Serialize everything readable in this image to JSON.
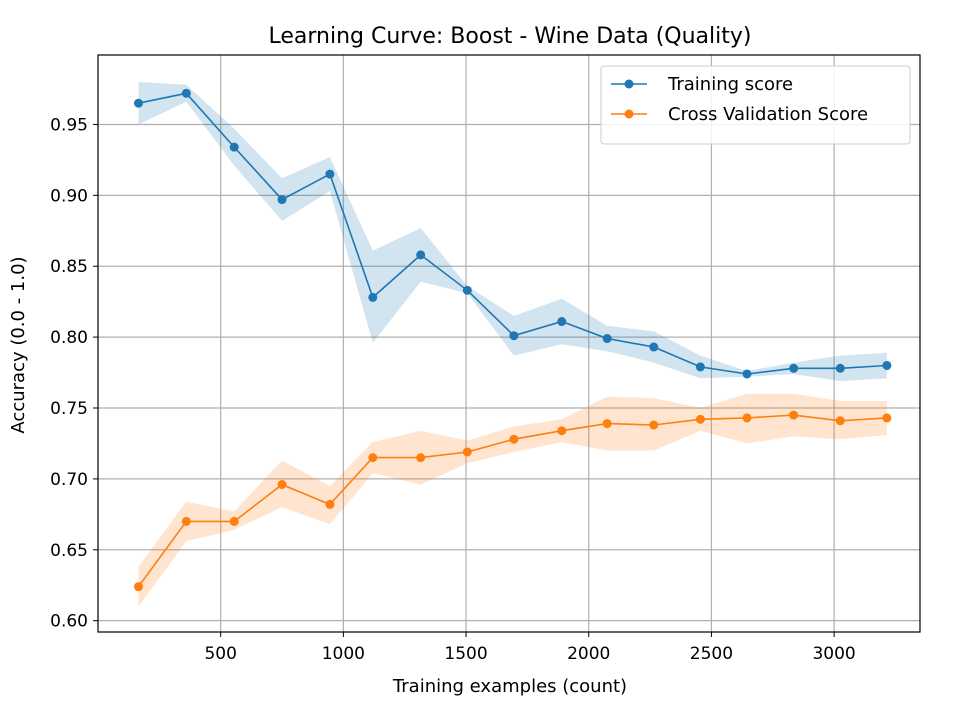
{
  "chart_data": {
    "type": "line",
    "title": "Learning Curve: Boost - Wine Data (Quality)",
    "xlabel": "Training examples (count)",
    "ylabel": "Accuracy (0.0 - 1.0)",
    "xlim": [
      0,
      3350
    ],
    "ylim": [
      0.592,
      0.999
    ],
    "x_ticks": [
      500,
      1000,
      1500,
      2000,
      2500,
      3000
    ],
    "y_ticks": [
      0.6,
      0.65,
      0.7,
      0.75,
      0.8,
      0.85,
      0.9,
      0.95
    ],
    "grid": true,
    "legend_position": "upper right",
    "x": [
      165,
      360,
      555,
      750,
      945,
      1120,
      1315,
      1505,
      1695,
      1890,
      2075,
      2265,
      2455,
      2645,
      2835,
      3025,
      3215
    ],
    "series": [
      {
        "name": "Training score",
        "color": "#1f77b4",
        "band_color": "#1f77b4",
        "values": [
          0.965,
          0.972,
          0.934,
          0.897,
          0.915,
          0.828,
          0.858,
          0.833,
          0.801,
          0.811,
          0.799,
          0.793,
          0.779,
          0.774,
          0.778,
          0.778,
          0.78
        ],
        "lower": [
          0.95,
          0.966,
          0.921,
          0.882,
          0.903,
          0.796,
          0.839,
          0.831,
          0.787,
          0.795,
          0.79,
          0.782,
          0.771,
          0.772,
          0.774,
          0.769,
          0.771
        ],
        "upper": [
          0.98,
          0.978,
          0.947,
          0.912,
          0.927,
          0.861,
          0.877,
          0.836,
          0.815,
          0.827,
          0.808,
          0.804,
          0.787,
          0.776,
          0.782,
          0.787,
          0.789
        ]
      },
      {
        "name": "Cross Validation Score",
        "color": "#ff7f0e",
        "band_color": "#ff7f0e",
        "values": [
          0.624,
          0.67,
          0.67,
          0.696,
          0.682,
          0.715,
          0.715,
          0.719,
          0.728,
          0.734,
          0.739,
          0.738,
          0.742,
          0.743,
          0.745,
          0.741,
          0.743
        ],
        "lower": [
          0.61,
          0.656,
          0.664,
          0.68,
          0.668,
          0.704,
          0.696,
          0.711,
          0.719,
          0.726,
          0.72,
          0.72,
          0.734,
          0.725,
          0.73,
          0.728,
          0.731
        ],
        "upper": [
          0.638,
          0.684,
          0.677,
          0.713,
          0.695,
          0.726,
          0.734,
          0.727,
          0.737,
          0.742,
          0.758,
          0.757,
          0.75,
          0.76,
          0.76,
          0.755,
          0.755
        ]
      }
    ]
  }
}
